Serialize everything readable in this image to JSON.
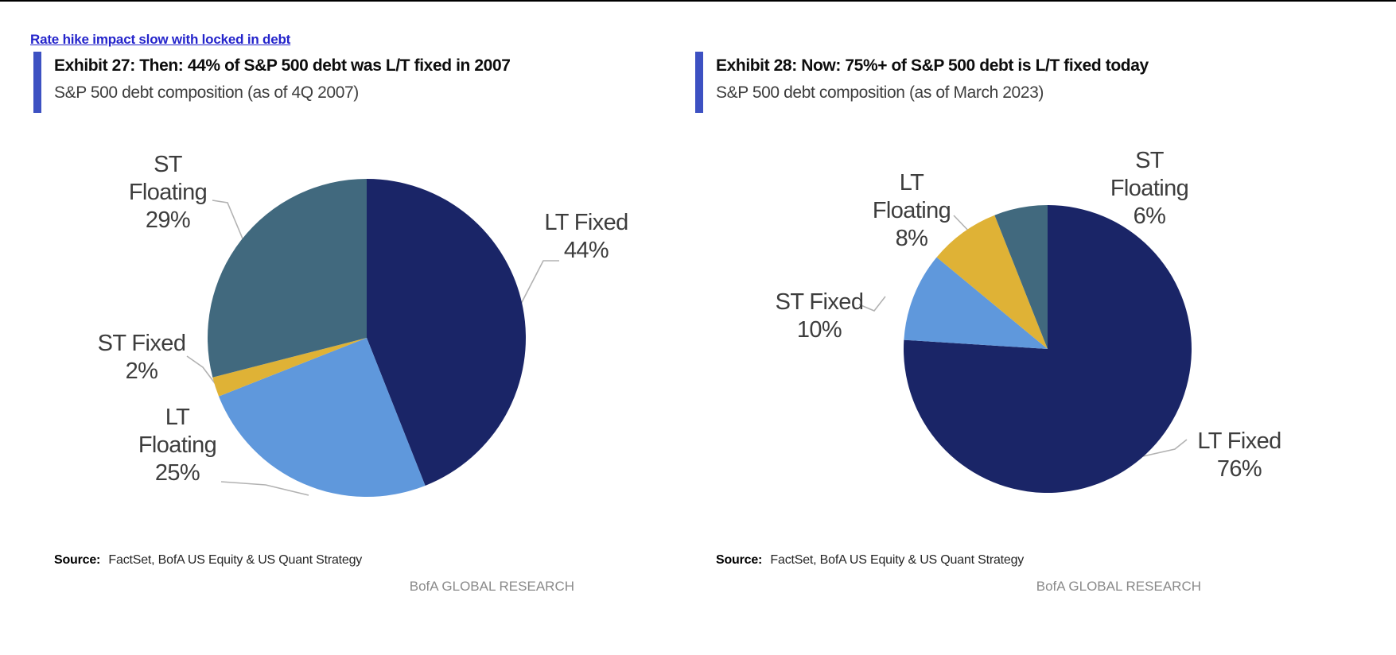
{
  "link": {
    "label": "Rate hike impact slow with locked in debt",
    "color": "#2424cb"
  },
  "accent_bar_color": "#3d51c2",
  "chart_data": [
    {
      "type": "pie",
      "title": "Exhibit 27: Then: 44% of S&P 500 debt was L/T fixed in 2007",
      "subtitle": "S&P 500 debt composition (as of 4Q 2007)",
      "start_angle_deg": 0,
      "direction": "clockwise",
      "slices": [
        {
          "name": "LT Fixed",
          "value": 44,
          "color": "#1a2567",
          "label_lines": [
            "LT Fixed",
            "44%"
          ]
        },
        {
          "name": "LT Floating",
          "value": 25,
          "color": "#5f98dc",
          "label_lines": [
            "LT",
            "Floating",
            "25%"
          ]
        },
        {
          "name": "ST Fixed",
          "value": 2,
          "color": "#dfb236",
          "label_lines": [
            "ST Fixed",
            "2%"
          ]
        },
        {
          "name": "ST Floating",
          "value": 29,
          "color": "#41697e",
          "label_lines": [
            "ST",
            "Floating",
            "29%"
          ]
        }
      ],
      "source_label": "Source:",
      "source_text": "FactSet, BofA US Equity & US Quant Strategy",
      "footer": "BofA GLOBAL RESEARCH"
    },
    {
      "type": "pie",
      "title": "Exhibit 28: Now: 75%+ of S&P 500 debt is L/T fixed today",
      "subtitle": "S&P 500 debt composition (as of March 2023)",
      "start_angle_deg": 0,
      "direction": "clockwise",
      "slices": [
        {
          "name": "LT Fixed",
          "value": 76,
          "color": "#1a2567",
          "label_lines": [
            "LT Fixed",
            "76%"
          ]
        },
        {
          "name": "ST Fixed",
          "value": 10,
          "color": "#5f98dc",
          "label_lines": [
            "ST Fixed",
            "10%"
          ]
        },
        {
          "name": "LT Floating",
          "value": 8,
          "color": "#dfb236",
          "label_lines": [
            "LT",
            "Floating",
            "8%"
          ]
        },
        {
          "name": "ST Floating",
          "value": 6,
          "color": "#41697e",
          "label_lines": [
            "ST",
            "Floating",
            "6%"
          ]
        }
      ],
      "source_label": "Source:",
      "source_text": "FactSet, BofA US Equity & US Quant Strategy",
      "footer": "BofA GLOBAL RESEARCH"
    }
  ]
}
